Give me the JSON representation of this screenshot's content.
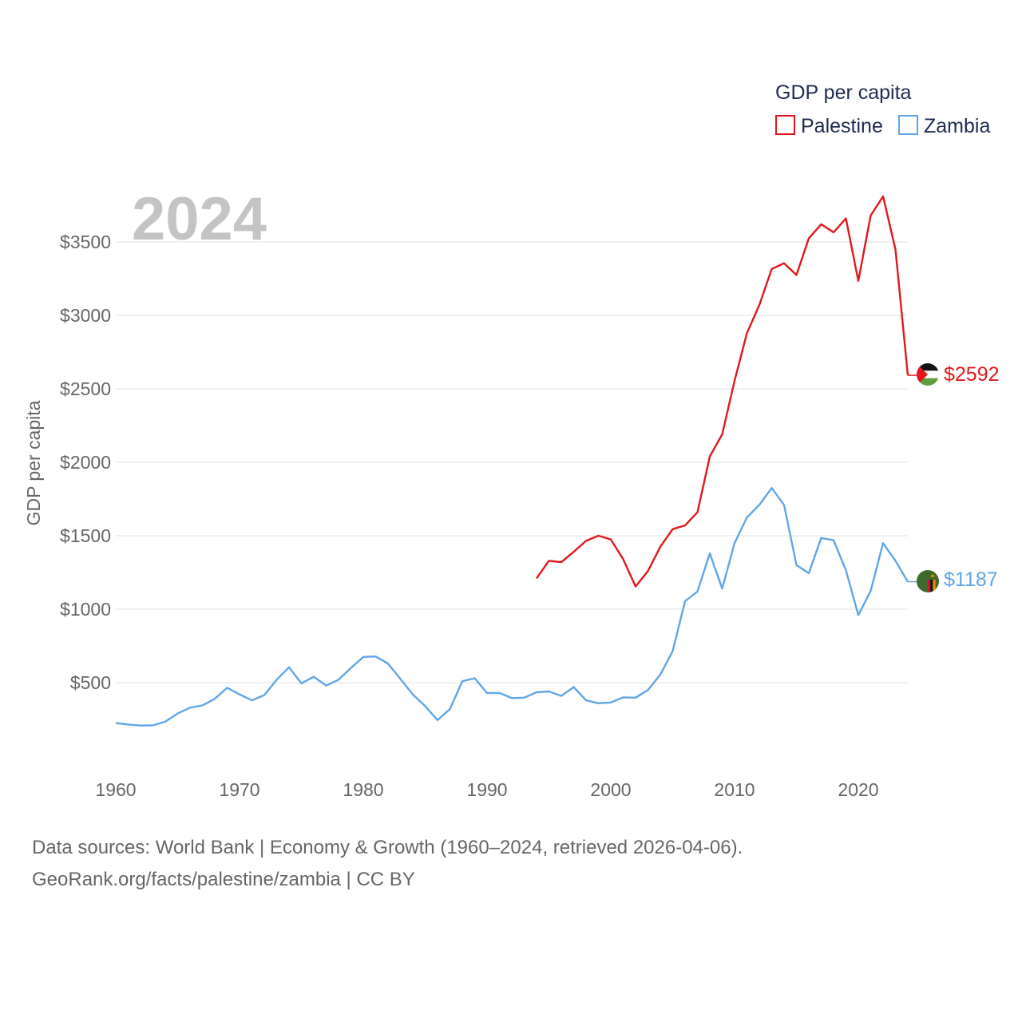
{
  "chart_data": {
    "type": "line",
    "year_label": "2024",
    "ylabel": "GDP per capita",
    "xlim": [
      1960,
      2024
    ],
    "ylim": [
      0,
      3800
    ],
    "x_ticks": [
      1960,
      1970,
      1980,
      1990,
      2000,
      2010,
      2020
    ],
    "x_tick_labels": [
      "1960",
      "1970",
      "1980",
      "1990",
      "2000",
      "2010",
      "2020"
    ],
    "y_ticks": [
      500,
      1000,
      1500,
      2000,
      2500,
      3000,
      3500
    ],
    "y_tick_labels": [
      "$500",
      "$1000",
      "$1500",
      "$2000",
      "$2500",
      "$3000",
      "$3500"
    ],
    "legend": {
      "title": "GDP per capita",
      "placement": "top-right",
      "entries": [
        "Palestine",
        "Zambia"
      ]
    },
    "series": [
      {
        "name": "Palestine",
        "color": "#e3171b",
        "flag": "palestine-flag-icon",
        "end_label": "$2592",
        "x": [
          1994,
          1995,
          1996,
          1997,
          1998,
          1999,
          2000,
          2001,
          2002,
          2003,
          2004,
          2005,
          2006,
          2007,
          2008,
          2009,
          2010,
          2011,
          2012,
          2013,
          2014,
          2015,
          2016,
          2017,
          2018,
          2019,
          2020,
          2021,
          2022,
          2023,
          2024
        ],
        "values": [
          1210,
          1330,
          1320,
          1390,
          1465,
          1500,
          1475,
          1340,
          1155,
          1260,
          1425,
          1545,
          1570,
          1660,
          2040,
          2190,
          2555,
          2880,
          3070,
          3315,
          3355,
          3275,
          3525,
          3620,
          3565,
          3660,
          3235,
          3680,
          3810,
          3450,
          2592
        ]
      },
      {
        "name": "Zambia",
        "color": "#5fa6e8",
        "flag": "zambia-flag-icon",
        "end_label": "$1187",
        "x": [
          1960,
          1961,
          1962,
          1963,
          1964,
          1965,
          1966,
          1967,
          1968,
          1969,
          1970,
          1971,
          1972,
          1973,
          1974,
          1975,
          1976,
          1977,
          1978,
          1979,
          1980,
          1981,
          1982,
          1983,
          1984,
          1985,
          1986,
          1987,
          1988,
          1989,
          1990,
          1991,
          1992,
          1993,
          1994,
          1995,
          1996,
          1997,
          1998,
          1999,
          2000,
          2001,
          2002,
          2003,
          2004,
          2005,
          2006,
          2007,
          2008,
          2009,
          2010,
          2011,
          2012,
          2013,
          2014,
          2015,
          2016,
          2017,
          2018,
          2019,
          2020,
          2021,
          2022,
          2023,
          2024
        ],
        "values": [
          225,
          215,
          208,
          210,
          235,
          290,
          330,
          345,
          390,
          465,
          420,
          380,
          415,
          520,
          605,
          495,
          540,
          480,
          520,
          600,
          675,
          678,
          630,
          525,
          420,
          340,
          245,
          320,
          510,
          530,
          430,
          430,
          395,
          398,
          435,
          440,
          410,
          470,
          380,
          360,
          365,
          400,
          398,
          450,
          555,
          715,
          1055,
          1120,
          1380,
          1140,
          1450,
          1625,
          1710,
          1825,
          1710,
          1300,
          1245,
          1485,
          1470,
          1265,
          960,
          1125,
          1450,
          1330,
          1187
        ]
      }
    ]
  },
  "footer": {
    "line1": "Data sources: World Bank | Economy & Growth (1960–2024, retrieved 2026-04-06).",
    "line2": "GeoRank.org/facts/palestine/zambia | CC BY"
  }
}
